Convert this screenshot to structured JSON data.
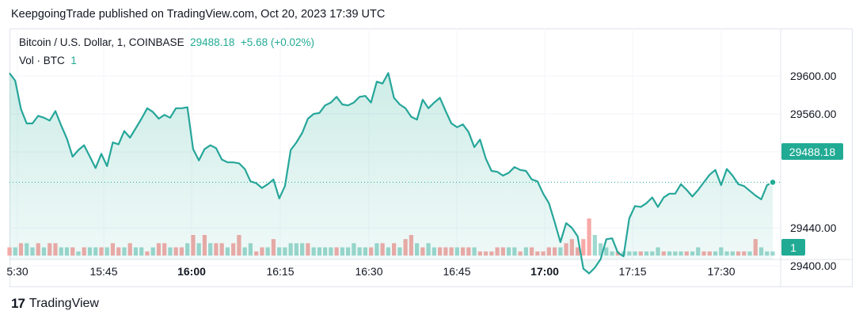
{
  "header": {
    "published_text": "KeepgoingTrade published on TradingView.com, Oct 20, 2023 17:39 UTC"
  },
  "legend": {
    "symbol": "Bitcoin / U.S. Dollar, 1, COINBASE",
    "last": "29488.18",
    "change": "+5.68 (+0.02%)",
    "vol_label": "Vol · BTC",
    "vol_value": "1"
  },
  "price_tag": "29488.18",
  "vol_tag": "1",
  "footer": {
    "brand": "TradingView",
    "logo_glyph": "17"
  },
  "colors": {
    "up": "#22ab94",
    "down": "#f7a9a7",
    "vol_up": "#9fd8cf",
    "line": "#26a69a"
  },
  "chart_data": {
    "type": "area",
    "title": "Bitcoin / U.S. Dollar, 1, COINBASE",
    "x_ticks": [
      "5:30",
      "15:45",
      "16:00",
      "16:15",
      "16:30",
      "16:45",
      "17:00",
      "17:15",
      "17:30"
    ],
    "bold_ticks": [
      "16:00",
      "17:00"
    ],
    "y_ticks": [
      "29600.00",
      "29560.00",
      "29520.00",
      "29440.00",
      "29400.00"
    ],
    "ylim": [
      29380,
      29640
    ],
    "series": [
      {
        "values": [
          29603,
          29595,
          29565,
          29550,
          29550,
          29558,
          29556,
          29553,
          29563,
          29548,
          29534,
          29515,
          29522,
          29527,
          29515,
          29503,
          29518,
          29505,
          29530,
          29528,
          29542,
          29535,
          29545,
          29555,
          29566,
          29562,
          29555,
          29559,
          29556,
          29566,
          29566,
          29567,
          29523,
          29511,
          29523,
          29527,
          29524,
          29512,
          29509,
          29509,
          29508,
          29502,
          29489,
          29487,
          29482,
          29486,
          29491,
          29471,
          29484,
          29522,
          29530,
          29540,
          29555,
          29560,
          29561,
          29569,
          29572,
          29578,
          29570,
          29569,
          29572,
          29578,
          29579,
          29572,
          29594,
          29592,
          29603,
          29577,
          29570,
          29566,
          29557,
          29554,
          29575,
          29566,
          29572,
          29577,
          29563,
          29550,
          29546,
          29549,
          29541,
          29525,
          29533,
          29513,
          29500,
          29499,
          29495,
          29498,
          29504,
          29501,
          29500,
          29491,
          29489,
          29476,
          29466,
          29446,
          29425,
          29445,
          29440,
          29431,
          29397,
          29392,
          29398,
          29407,
          29428,
          29429,
          29414,
          29410,
          29450,
          29463,
          29462,
          29466,
          29472,
          29462,
          29472,
          29476,
          29476,
          29486,
          29480,
          29473,
          29480,
          29488,
          29496,
          29501,
          29485,
          29502,
          29495,
          29486,
          29484,
          29479,
          29474,
          29470,
          29485,
          29488
        ]
      }
    ],
    "volume": [
      2,
      2,
      3,
      3,
      2,
      3,
      2,
      3,
      3,
      2,
      2,
      2,
      1,
      2,
      2,
      2,
      2,
      2,
      3,
      2,
      2,
      3,
      2,
      2,
      1,
      2,
      3,
      3,
      2,
      2,
      2,
      3,
      5,
      3,
      5,
      3,
      3,
      3,
      2,
      3,
      5,
      2,
      3,
      1,
      2,
      2,
      4,
      2,
      2,
      3,
      3,
      3,
      3,
      2,
      2,
      2,
      2,
      2,
      2,
      2,
      3,
      2,
      2,
      2,
      3,
      3,
      2,
      3,
      2,
      4,
      5,
      3,
      2,
      3,
      2,
      2,
      2,
      2,
      2,
      2,
      2,
      2,
      1,
      1,
      1,
      2,
      2,
      2,
      2,
      1,
      2,
      2,
      1,
      1,
      2,
      2,
      2,
      3,
      4,
      2,
      4,
      9,
      5,
      3,
      2,
      1,
      1,
      1,
      1,
      1,
      1,
      1,
      1,
      2,
      1,
      1,
      1,
      1,
      1,
      1,
      2,
      1,
      1,
      1,
      2,
      1,
      1,
      1,
      1,
      1,
      4,
      2,
      1,
      1
    ],
    "volume_up": [
      0,
      1,
      0,
      1,
      1,
      0,
      1,
      0,
      0,
      1,
      1,
      0,
      1,
      0,
      1,
      1,
      0,
      1,
      0,
      0,
      1,
      0,
      1,
      1,
      0,
      1,
      0,
      0,
      1,
      0,
      0,
      1,
      0,
      1,
      0,
      1,
      0,
      0,
      1,
      0,
      0,
      1,
      1,
      0,
      0,
      1,
      0,
      1,
      1,
      1,
      1,
      1,
      0,
      1,
      1,
      1,
      1,
      0,
      1,
      1,
      1,
      1,
      1,
      0,
      1,
      0,
      1,
      0,
      1,
      0,
      0,
      1,
      0,
      1,
      1,
      0,
      0,
      0,
      1,
      0,
      0,
      1,
      0,
      0,
      0,
      0,
      0,
      1,
      1,
      0,
      1,
      0,
      0,
      0,
      0,
      0,
      1,
      0,
      0,
      0,
      0,
      0,
      1,
      1,
      1,
      1,
      0,
      1,
      1,
      1,
      0,
      1,
      1,
      1,
      0,
      1,
      1,
      1,
      0,
      1,
      1,
      0,
      0,
      1,
      1,
      1,
      1,
      0,
      0,
      1,
      0,
      1,
      1,
      1
    ]
  }
}
